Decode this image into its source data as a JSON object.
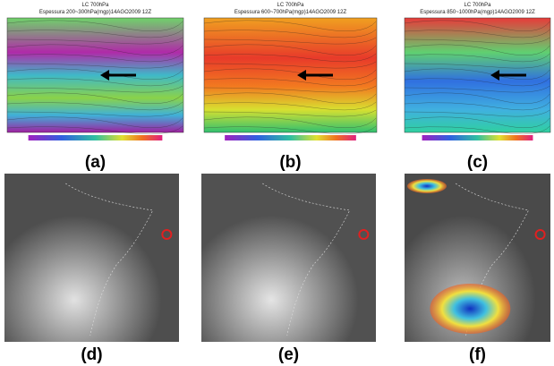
{
  "panels": [
    {
      "label": "(a)",
      "title": "LC 700hPa",
      "subtitle": "Espessura 200~300hPa(mgp)14AGO2009 12Z"
    },
    {
      "label": "(b)",
      "title": "LC 700hPa",
      "subtitle": "Espessura 600~700hPa(mgp)14AGO2009 12Z"
    },
    {
      "label": "(c)",
      "title": "LC 700hPa",
      "subtitle": "Espessura 850~1000hPa(mgp)14AGO2009 12Z"
    },
    {
      "label": "(d)"
    },
    {
      "label": "(e)"
    },
    {
      "label": "(f)"
    }
  ]
}
